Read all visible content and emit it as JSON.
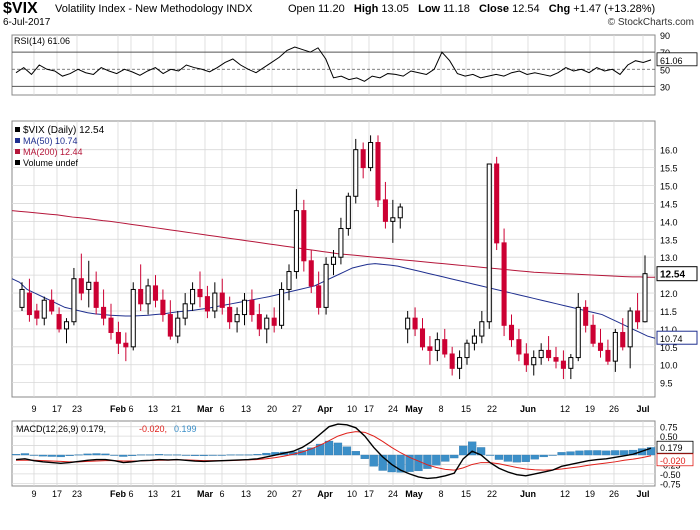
{
  "header": {
    "symbol": "$VIX",
    "name": "Volatility Index - New Methodology  INDX",
    "date": "6-Jul-2017",
    "watermark": "© StockCharts.com",
    "open_label": "Open",
    "open": "11.20",
    "high_label": "High",
    "high": "13.05",
    "low_label": "Low",
    "low": "11.18",
    "close_label": "Close",
    "close": "12.54",
    "chg_label": "Chg",
    "chg": "+1.47 (+13.28%)"
  },
  "colors": {
    "up": "#000000",
    "down": "#cc0033",
    "ma50": "#1f2f8f",
    "ma200": "#b5163a",
    "macd_hist": "#3b8fc8",
    "signal": "#e0201a",
    "grid": "#d8d8d8"
  },
  "x_ticks": [
    "9",
    "17",
    "23",
    "Feb",
    "6",
    "13",
    "21",
    "Mar",
    "6",
    "13",
    "20",
    "27",
    "Apr",
    "10",
    "17",
    "24",
    "May",
    "8",
    "15",
    "22",
    "Jun",
    "12",
    "19",
    "26",
    "Jul"
  ],
  "chart_data": [
    {
      "type": "line",
      "title": "RSI(14) 61.06",
      "ylim": [
        20,
        90
      ],
      "y_ticks": [
        90,
        70,
        50,
        30
      ],
      "reference_lines": [
        70,
        50,
        30
      ],
      "last_value_label": "61.06",
      "series": [
        {
          "name": "RSI(14)",
          "values": [
            46,
            52,
            44,
            55,
            50,
            48,
            42,
            45,
            50,
            46,
            44,
            52,
            48,
            45,
            50,
            47,
            43,
            48,
            52,
            45,
            50,
            48,
            55,
            52,
            50,
            47,
            52,
            58,
            62,
            55,
            50,
            46,
            52,
            58,
            64,
            72,
            76,
            73,
            70,
            75,
            62,
            40,
            42,
            38,
            40,
            36,
            42,
            40,
            45,
            44,
            42,
            48,
            46,
            44,
            50,
            70,
            60,
            45,
            42,
            44,
            40,
            42,
            44,
            42,
            46,
            48,
            44,
            46,
            44,
            42,
            46,
            52,
            48,
            50,
            46,
            52,
            48,
            50,
            44,
            55,
            60,
            58,
            61
          ]
        }
      ]
    },
    {
      "type": "candlestick",
      "title": "$VIX (Daily) 12.54",
      "ylim": [
        9.1,
        16.8
      ],
      "y_ticks": [
        16.0,
        15.5,
        15.0,
        14.5,
        14.0,
        13.5,
        13.0,
        12.5,
        12.0,
        11.5,
        11.0,
        10.5,
        10.0,
        9.5
      ],
      "last_value_label": "12.54",
      "ma50_value_label": "10.74",
      "legend": [
        "$VIX (Daily) 12.54",
        "MA(50) 10.74",
        "MA(200) 12.44",
        "Volume undef"
      ],
      "candles": [
        [
          11.6,
          12.3,
          11.5,
          12.1
        ],
        [
          12.0,
          12.4,
          11.2,
          11.4
        ],
        [
          11.5,
          11.7,
          11.1,
          11.3
        ],
        [
          11.3,
          11.9,
          11.1,
          11.8
        ],
        [
          11.8,
          12.1,
          11.4,
          11.5
        ],
        [
          11.4,
          11.6,
          10.9,
          11.0
        ],
        [
          11.0,
          11.3,
          10.6,
          11.2
        ],
        [
          11.2,
          12.7,
          11.1,
          12.4
        ],
        [
          12.4,
          13.1,
          11.8,
          12.0
        ],
        [
          12.1,
          12.9,
          11.6,
          12.3
        ],
        [
          12.3,
          12.6,
          11.4,
          11.6
        ],
        [
          11.6,
          12.1,
          11.1,
          11.3
        ],
        [
          11.3,
          11.7,
          10.7,
          10.9
        ],
        [
          10.9,
          11.2,
          10.3,
          10.6
        ],
        [
          10.6,
          10.9,
          10.1,
          10.5
        ],
        [
          10.5,
          12.3,
          10.4,
          12.1
        ],
        [
          12.1,
          12.8,
          11.5,
          11.7
        ],
        [
          11.7,
          12.4,
          11.4,
          12.2
        ],
        [
          12.2,
          12.5,
          11.6,
          11.8
        ],
        [
          11.8,
          12.1,
          11.2,
          11.4
        ],
        [
          11.4,
          11.8,
          10.7,
          10.8
        ],
        [
          10.8,
          11.5,
          10.6,
          11.3
        ],
        [
          11.3,
          12.0,
          11.1,
          11.7
        ],
        [
          11.7,
          12.3,
          11.5,
          12.1
        ],
        [
          12.1,
          12.6,
          11.6,
          11.9
        ],
        [
          11.9,
          12.2,
          11.3,
          11.5
        ],
        [
          11.5,
          12.3,
          11.3,
          12.0
        ],
        [
          12.0,
          12.4,
          11.4,
          11.6
        ],
        [
          11.6,
          11.9,
          11.0,
          11.2
        ],
        [
          11.2,
          11.6,
          10.9,
          11.4
        ],
        [
          11.4,
          12.0,
          11.1,
          11.8
        ],
        [
          11.8,
          12.1,
          11.2,
          11.4
        ],
        [
          11.4,
          11.7,
          10.8,
          11.0
        ],
        [
          11.0,
          11.4,
          10.6,
          11.3
        ],
        [
          11.3,
          11.6,
          10.9,
          11.1
        ],
        [
          11.1,
          12.3,
          11.0,
          12.1
        ],
        [
          12.1,
          12.8,
          11.8,
          12.6
        ],
        [
          12.6,
          14.9,
          12.4,
          14.3
        ],
        [
          14.3,
          14.6,
          12.6,
          12.9
        ],
        [
          12.9,
          13.2,
          12.0,
          12.2
        ],
        [
          12.2,
          12.6,
          11.4,
          11.6
        ],
        [
          11.6,
          13.0,
          11.4,
          12.8
        ],
        [
          12.8,
          13.2,
          12.5,
          13.0
        ],
        [
          13.0,
          14.1,
          12.8,
          13.8
        ],
        [
          13.8,
          14.8,
          13.6,
          14.7
        ],
        [
          14.7,
          16.3,
          14.5,
          16.0
        ],
        [
          16.0,
          16.2,
          15.2,
          15.5
        ],
        [
          15.5,
          16.4,
          15.4,
          16.2
        ],
        [
          16.2,
          16.4,
          14.4,
          14.6
        ],
        [
          14.6,
          15.1,
          13.8,
          14.0
        ],
        [
          14.0,
          14.6,
          13.4,
          14.1
        ],
        [
          14.1,
          14.5,
          13.8,
          14.4
        ],
        [
          11.0,
          11.5,
          10.6,
          11.3
        ],
        [
          11.3,
          11.6,
          10.8,
          11.0
        ],
        [
          11.0,
          11.3,
          10.4,
          10.5
        ],
        [
          10.5,
          10.8,
          10.0,
          10.4
        ],
        [
          10.4,
          10.9,
          10.1,
          10.7
        ],
        [
          10.7,
          11.0,
          10.2,
          10.3
        ],
        [
          10.3,
          10.5,
          9.7,
          9.9
        ],
        [
          9.9,
          10.4,
          9.6,
          10.2
        ],
        [
          10.2,
          10.7,
          10.0,
          10.6
        ],
        [
          10.6,
          11.0,
          10.4,
          10.8
        ],
        [
          10.8,
          11.5,
          10.6,
          11.2
        ],
        [
          11.2,
          15.6,
          11.0,
          15.6
        ],
        [
          15.6,
          15.8,
          13.2,
          13.4
        ],
        [
          13.4,
          13.8,
          10.8,
          11.1
        ],
        [
          11.1,
          11.4,
          10.5,
          10.7
        ],
        [
          10.7,
          11.0,
          10.1,
          10.3
        ],
        [
          10.3,
          10.6,
          9.8,
          10.0
        ],
        [
          10.0,
          10.4,
          9.7,
          10.2
        ],
        [
          10.2,
          10.6,
          10.0,
          10.4
        ],
        [
          10.4,
          10.8,
          10.1,
          10.2
        ],
        [
          10.2,
          10.5,
          9.9,
          10.1
        ],
        [
          10.1,
          10.4,
          9.6,
          9.9
        ],
        [
          9.9,
          10.3,
          9.6,
          10.2
        ],
        [
          10.2,
          12.0,
          10.1,
          11.6
        ],
        [
          11.6,
          11.8,
          10.9,
          11.1
        ],
        [
          11.1,
          11.4,
          10.5,
          10.6
        ],
        [
          10.6,
          11.0,
          10.2,
          10.4
        ],
        [
          10.4,
          10.7,
          10.0,
          10.1
        ],
        [
          10.1,
          11.0,
          9.8,
          10.9
        ],
        [
          10.9,
          11.3,
          10.4,
          10.5
        ],
        [
          10.5,
          11.6,
          9.9,
          11.5
        ],
        [
          11.5,
          12.0,
          11.0,
          11.2
        ],
        [
          11.2,
          13.05,
          11.18,
          12.54
        ]
      ],
      "ma50": [
        12.4,
        12.3,
        12.1,
        12.0,
        11.9,
        11.8,
        11.7,
        11.6,
        11.55,
        11.5,
        11.45,
        11.42,
        11.4,
        11.38,
        11.37,
        11.36,
        11.36,
        11.37,
        11.38,
        11.4,
        11.42,
        11.45,
        11.48,
        11.5,
        11.52,
        11.55,
        11.58,
        11.62,
        11.66,
        11.7,
        11.74,
        11.78,
        11.82,
        11.86,
        11.9,
        11.95,
        12.0,
        12.05,
        12.1,
        12.15,
        12.2,
        12.3,
        12.4,
        12.5,
        12.6,
        12.7,
        12.75,
        12.8,
        12.82,
        12.8,
        12.78,
        12.75,
        12.7,
        12.65,
        12.6,
        12.55,
        12.5,
        12.45,
        12.4,
        12.35,
        12.3,
        12.25,
        12.2,
        12.15,
        12.1,
        12.05,
        12.0,
        11.95,
        11.9,
        11.85,
        11.8,
        11.75,
        11.7,
        11.65,
        11.6,
        11.55,
        11.5,
        11.45,
        11.4,
        11.3,
        11.2,
        11.1,
        11.0,
        10.9,
        10.8,
        10.74
      ],
      "ma200": [
        14.3,
        14.28,
        14.26,
        14.24,
        14.22,
        14.2,
        14.18,
        14.15,
        14.12,
        14.1,
        14.08,
        14.05,
        14.02,
        14.0,
        13.97,
        13.94,
        13.91,
        13.88,
        13.85,
        13.82,
        13.79,
        13.76,
        13.73,
        13.7,
        13.67,
        13.64,
        13.61,
        13.58,
        13.55,
        13.52,
        13.49,
        13.46,
        13.43,
        13.4,
        13.37,
        13.34,
        13.31,
        13.28,
        13.25,
        13.22,
        13.19,
        13.16,
        13.13,
        13.1,
        13.08,
        13.06,
        13.04,
        13.02,
        13.0,
        12.98,
        12.96,
        12.94,
        12.92,
        12.9,
        12.88,
        12.86,
        12.84,
        12.82,
        12.8,
        12.78,
        12.76,
        12.74,
        12.72,
        12.7,
        12.68,
        12.66,
        12.64,
        12.62,
        12.6,
        12.58,
        12.57,
        12.56,
        12.55,
        12.54,
        12.53,
        12.52,
        12.51,
        12.5,
        12.49,
        12.48,
        12.47,
        12.46,
        12.45,
        12.45,
        12.44,
        12.44
      ]
    },
    {
      "type": "line",
      "title": "MACD(12,26,9) 0.179, -0.020, 0.199",
      "title_parts": {
        "name": "MACD(12,26,9)",
        "macd": "0.179",
        "signal": "-0.020",
        "hist": "0.199"
      },
      "ylim": [
        -0.82,
        0.9
      ],
      "y_ticks": [
        0.75,
        0.5,
        0.25,
        0.0,
        -0.25,
        -0.5,
        -0.75
      ],
      "labels": {
        "macd": "0.179",
        "signal": "-0.020"
      },
      "series": [
        {
          "name": "MACD",
          "values": [
            -0.12,
            -0.1,
            -0.15,
            -0.18,
            -0.2,
            -0.22,
            -0.2,
            -0.17,
            -0.14,
            -0.12,
            -0.12,
            -0.15,
            -0.2,
            -0.18,
            -0.15,
            -0.14,
            -0.12,
            -0.13,
            -0.12,
            -0.14,
            -0.16,
            -0.17,
            -0.16,
            -0.15,
            -0.14,
            -0.13,
            -0.12,
            -0.1,
            -0.05,
            0.0,
            0.05,
            0.1,
            0.2,
            0.35,
            0.55,
            0.75,
            0.82,
            0.8,
            0.72,
            0.5,
            0.2,
            -0.05,
            -0.25,
            -0.4,
            -0.5,
            -0.58,
            -0.62,
            -0.6,
            -0.55,
            -0.48,
            -0.1,
            0.1,
            0.0,
            -0.2,
            -0.35,
            -0.45,
            -0.52,
            -0.55,
            -0.5,
            -0.45,
            -0.4,
            -0.3,
            -0.25,
            -0.2,
            -0.15,
            -0.12,
            -0.1,
            -0.06,
            -0.02,
            0.02,
            0.1,
            0.18
          ]
        },
        {
          "name": "Signal",
          "values": [
            -0.14,
            -0.14,
            -0.14,
            -0.15,
            -0.16,
            -0.17,
            -0.18,
            -0.18,
            -0.17,
            -0.16,
            -0.15,
            -0.15,
            -0.16,
            -0.16,
            -0.16,
            -0.15,
            -0.14,
            -0.14,
            -0.13,
            -0.13,
            -0.14,
            -0.15,
            -0.15,
            -0.15,
            -0.15,
            -0.14,
            -0.13,
            -0.12,
            -0.1,
            -0.07,
            -0.03,
            0.02,
            0.08,
            0.16,
            0.26,
            0.38,
            0.5,
            0.58,
            0.62,
            0.6,
            0.5,
            0.36,
            0.2,
            0.06,
            -0.06,
            -0.16,
            -0.26,
            -0.33,
            -0.38,
            -0.4,
            -0.34,
            -0.25,
            -0.2,
            -0.2,
            -0.23,
            -0.28,
            -0.33,
            -0.37,
            -0.39,
            -0.4,
            -0.39,
            -0.37,
            -0.34,
            -0.31,
            -0.27,
            -0.24,
            -0.21,
            -0.18,
            -0.14,
            -0.11,
            -0.07,
            -0.02
          ]
        }
      ]
    }
  ]
}
